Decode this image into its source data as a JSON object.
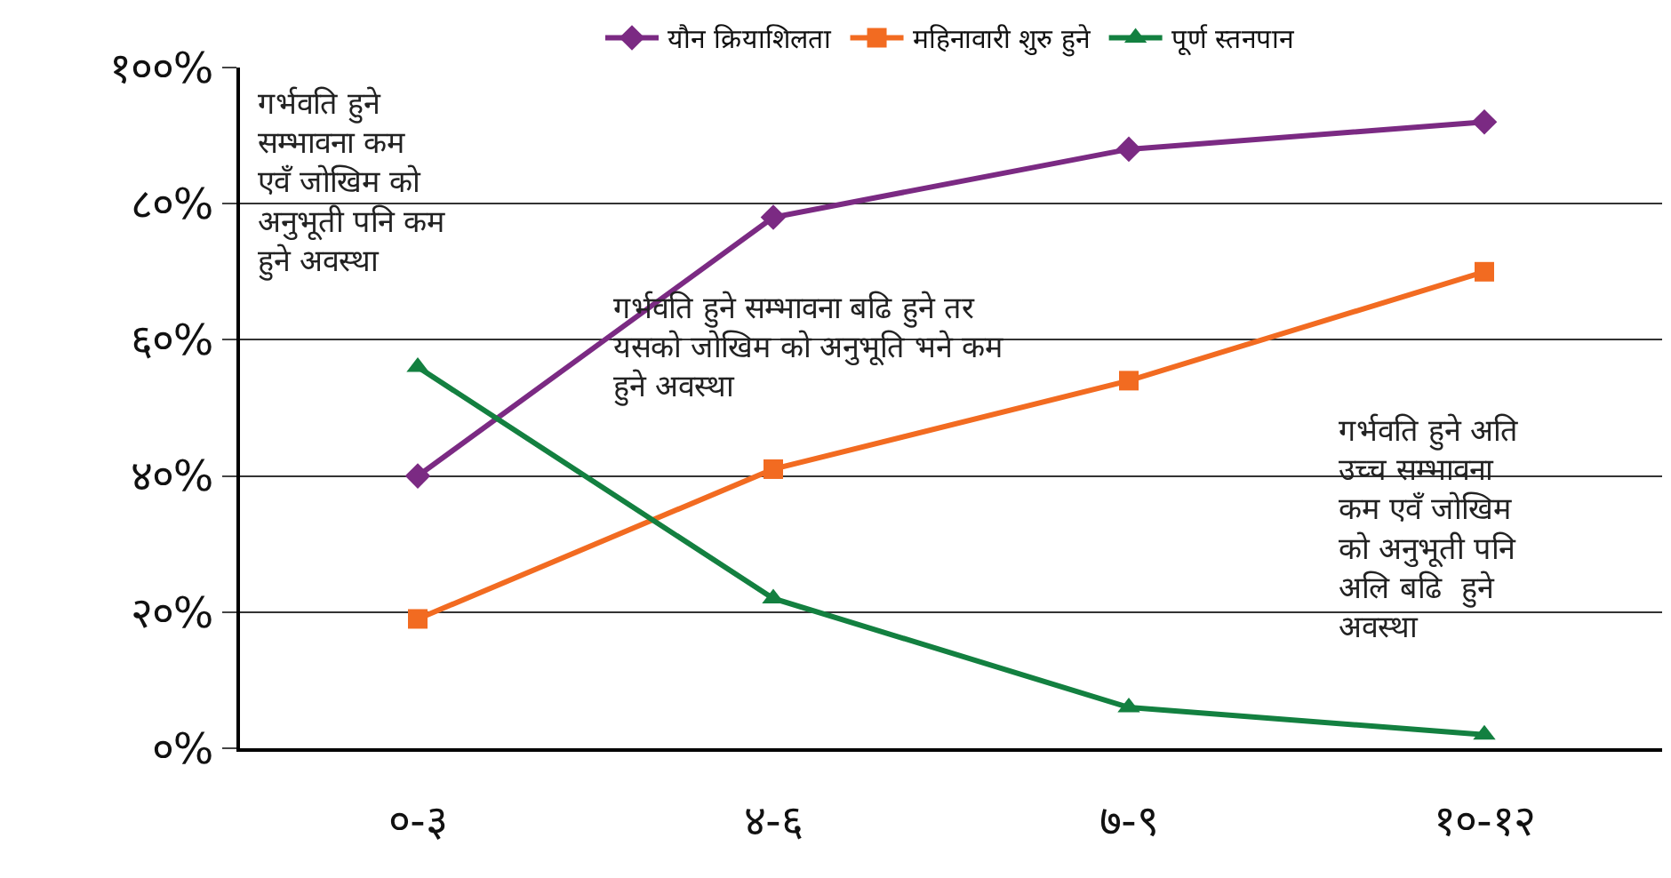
{
  "chart_data": {
    "type": "line",
    "categories": [
      "०-३",
      "४-६",
      "७-९",
      "१०-१२"
    ],
    "series": [
      {
        "name": "यौन क्रियाशिलता",
        "color": "#7b2a83",
        "marker": "diamond",
        "values": [
          40,
          78,
          88,
          92
        ]
      },
      {
        "name": "महिनावारी शुरु हुने",
        "color": "#f26b21",
        "marker": "square",
        "values": [
          19,
          41,
          54,
          70
        ]
      },
      {
        "name": "पूर्ण स्तनपान",
        "color": "#138040",
        "marker": "triangle",
        "values": [
          56,
          22,
          6,
          2
        ]
      }
    ],
    "ylim": [
      0,
      100
    ],
    "yticks": [
      {
        "value": 0,
        "label": "०%"
      },
      {
        "value": 20,
        "label": "२०%"
      },
      {
        "value": 40,
        "label": "४०%"
      },
      {
        "value": 60,
        "label": "६०%"
      },
      {
        "value": 80,
        "label": "८०%"
      },
      {
        "value": 100,
        "label": "१००%"
      }
    ],
    "grid": "y",
    "legend": "top",
    "annotations": [
      "गर्भवति हुने\nसम्भावना कम\nएवँ जोखिम को\nअनुभूती पनि कम\nहुने अवस्था",
      "गर्भवति हुने सम्भावना बढि हुने तर\nयसको जोखिम को अनुभूति भने कम\nहुने अवस्था",
      "गर्भवति हुने अति\nउच्च सम्भावना\nकम एवँ जोखिम\nको अनुभूती पनि\nअलि बढि  हुने\nअवस्था"
    ]
  }
}
